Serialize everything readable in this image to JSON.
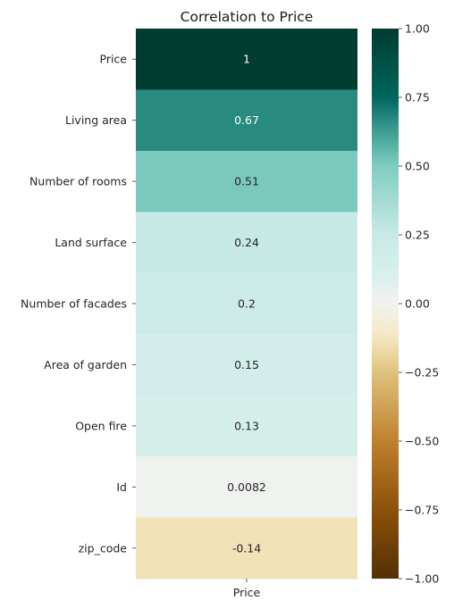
{
  "chart_data": {
    "type": "heatmap",
    "title": "Correlation to Price",
    "columns": [
      "Price"
    ],
    "rows": [
      "Price",
      "Living area",
      "Number of rooms",
      "Land surface",
      "Number of facades",
      "Area of garden",
      "Open fire",
      "Id",
      "zip_code"
    ],
    "values": [
      1,
      0.67,
      0.51,
      0.24,
      0.2,
      0.15,
      0.13,
      0.0082,
      -0.14
    ],
    "annotations": [
      "1",
      "0.67",
      "0.51",
      "0.24",
      "0.2",
      "0.15",
      "0.13",
      "0.0082",
      "-0.14"
    ],
    "colormap": "BrBG",
    "vmin": -1,
    "vmax": 1,
    "colorbar_ticks": [
      1.0,
      0.75,
      0.5,
      0.25,
      0.0,
      -0.25,
      -0.5,
      -0.75,
      -1.0
    ],
    "colorbar_tick_labels": [
      "1.00",
      "0.75",
      "0.50",
      "0.25",
      "0.00",
      "−0.25",
      "−0.50",
      "−0.75",
      "−1.00"
    ]
  }
}
